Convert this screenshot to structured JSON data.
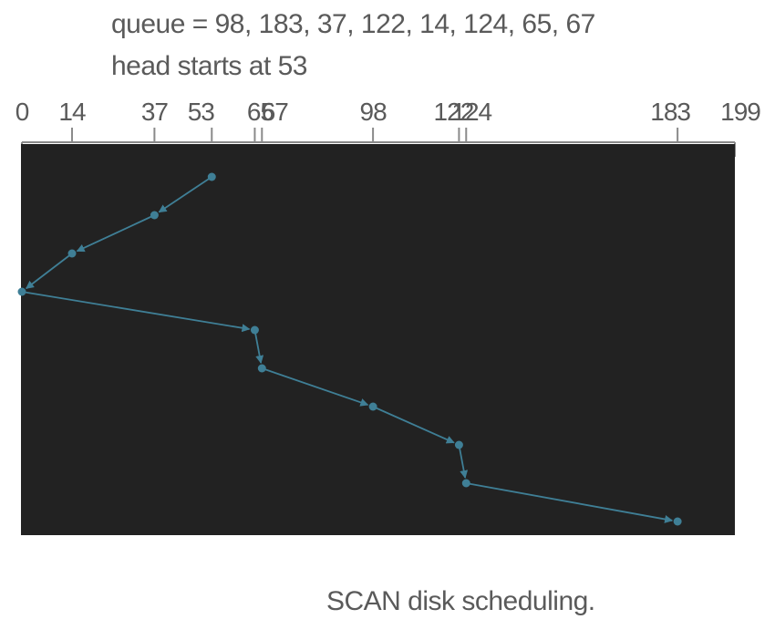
{
  "header": {
    "queue_text": "queue = 98, 183, 37, 122, 14, 124, 65, 67",
    "head_text": "head starts at 53"
  },
  "caption": "SCAN disk scheduling.",
  "axis": {
    "min": 0,
    "max": 199,
    "ticks": [
      0,
      14,
      37,
      53,
      65,
      67,
      98,
      122,
      124,
      183,
      199
    ]
  },
  "colors": {
    "panel": "#222222",
    "path": "#3f7f96",
    "axis": "#8a8a8a",
    "text": "#5a5a5a"
  },
  "chart_data": {
    "type": "line",
    "x": [
      53,
      37,
      14,
      0,
      65,
      67,
      98,
      122,
      124,
      183
    ],
    "xlim": [
      0,
      199
    ]
  }
}
